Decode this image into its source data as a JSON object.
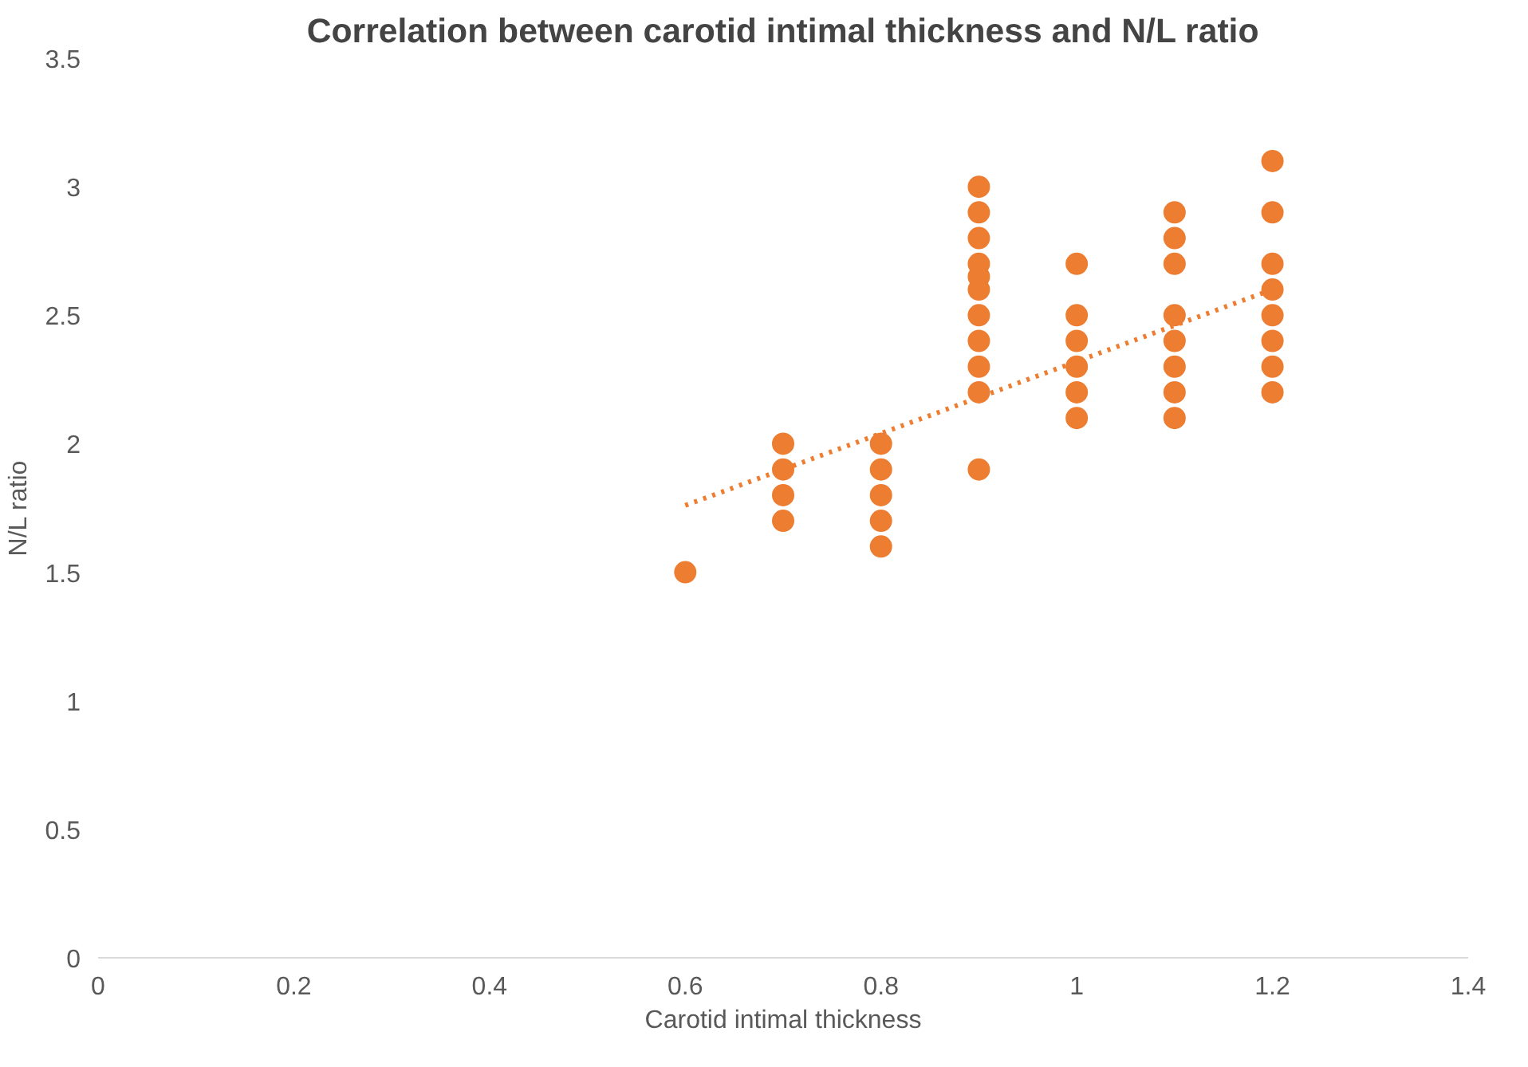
{
  "chart_data": {
    "type": "scatter",
    "title": "Correlation between carotid intimal thickness and N/L ratio",
    "xlabel": "Carotid intimal thickness",
    "ylabel": "N/L ratio",
    "xlim": [
      0,
      1.4
    ],
    "xticks": [
      0,
      0.2,
      0.4,
      0.6,
      0.8,
      1,
      1.2,
      1.4
    ],
    "ylim": [
      0,
      3.5
    ],
    "yticks": [
      0,
      0.5,
      1,
      1.5,
      2,
      2.5,
      3,
      3.5
    ],
    "grid": false,
    "marker": "circle",
    "series": [
      {
        "color": "#ed7d31",
        "x": [
          0.6,
          0.7,
          0.7,
          0.7,
          0.7,
          0.8,
          0.8,
          0.8,
          0.8,
          0.8,
          0.9,
          0.9,
          0.9,
          0.9,
          0.9,
          0.9,
          0.9,
          0.9,
          0.9,
          0.9,
          0.9,
          1,
          1,
          1,
          1,
          1,
          1,
          1.1,
          1.1,
          1.1,
          1.1,
          1.1,
          1.1,
          1.1,
          1.1,
          1.2,
          1.2,
          1.2,
          1.2,
          1.2,
          1.2,
          1.2,
          1.2
        ],
        "values": [
          1.5,
          2.0,
          1.9,
          1.8,
          1.7,
          2.0,
          1.9,
          1.8,
          1.7,
          1.6,
          3.0,
          2.9,
          2.8,
          2.7,
          2.65,
          2.6,
          2.5,
          2.4,
          2.3,
          2.2,
          1.9,
          2.7,
          2.5,
          2.4,
          2.3,
          2.2,
          2.1,
          2.9,
          2.8,
          2.7,
          2.5,
          2.4,
          2.3,
          2.2,
          2.1,
          3.1,
          2.9,
          2.7,
          2.6,
          2.5,
          2.4,
          2.3,
          2.2
        ]
      },
      {
        "type": "line",
        "color": "#ed7d31",
        "line_style": "dotted",
        "marker": "none",
        "x": [
          0.6,
          1.2
        ],
        "values": [
          1.76,
          2.6
        ]
      }
    ]
  }
}
